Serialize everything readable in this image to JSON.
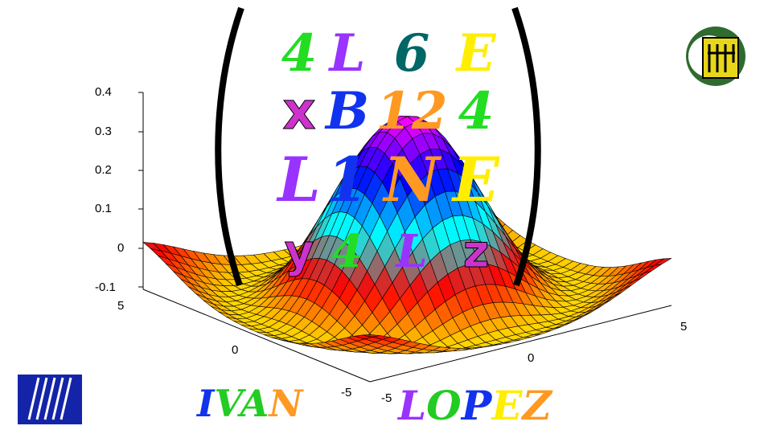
{
  "chart_data": {
    "type": "surface",
    "title": "",
    "xlabel": "",
    "ylabel": "",
    "zlabel": "",
    "xlim": [
      -5,
      5
    ],
    "ylim": [
      -5,
      5
    ],
    "zlim": [
      -0.1,
      0.4
    ],
    "z_ticks": [
      "0.4",
      "0.3",
      "0.2",
      "0.1",
      "0",
      "-0.1"
    ],
    "x_ticks": [
      "5",
      "0",
      "-5"
    ],
    "y_ticks": [
      "-5",
      "0",
      "5"
    ],
    "surface_peak": 0.38,
    "colormap": [
      "#ffff00",
      "#ff0000",
      "#00ffff",
      "#0000ff",
      "#ff00ff"
    ]
  },
  "matrix_letters": [
    [
      "4",
      "L",
      "6",
      "E"
    ],
    [
      "x",
      "B",
      "12",
      "4"
    ],
    [
      "L",
      "1",
      "N",
      "E"
    ],
    [
      "y",
      "4",
      "L",
      "z"
    ]
  ],
  "matrix_colors": [
    [
      "#22dd22",
      "#9933ff",
      "#006666",
      "#ffee00"
    ],
    [
      "#cc33cc",
      "#1133ee",
      "#ff9922",
      "#22dd22"
    ],
    [
      "#9933ff",
      "#1133ee",
      "#ff9922",
      "#ffee00"
    ],
    [
      "#cc33cc",
      "#22dd22",
      "#9933ff",
      "#cc33cc"
    ]
  ],
  "signature": {
    "first": "IVAN",
    "last": "LOPEZ"
  },
  "logo_right": "UPM logo",
  "logo_left": "department logo"
}
